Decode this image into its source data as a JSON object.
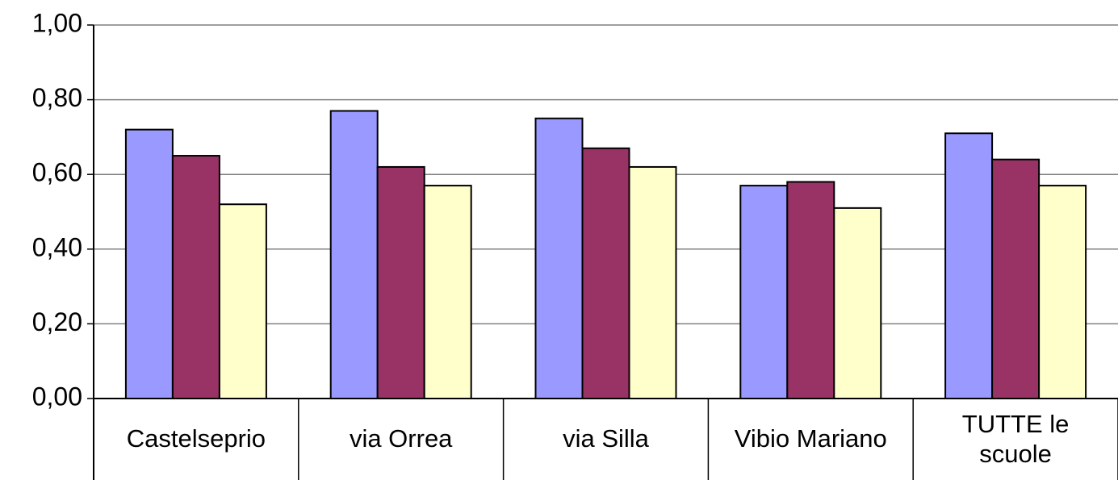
{
  "chart_data": {
    "type": "bar",
    "categories": [
      "Castelseprio",
      "via Orrea",
      "via Silla",
      "Vibio Mariano",
      "TUTTE le scuole"
    ],
    "series": [
      {
        "color": "#9999ff",
        "values": [
          0.72,
          0.77,
          0.75,
          0.57,
          0.71
        ]
      },
      {
        "color": "#993366",
        "values": [
          0.65,
          0.62,
          0.67,
          0.58,
          0.64
        ]
      },
      {
        "color": "#ffffcc",
        "values": [
          0.52,
          0.57,
          0.62,
          0.51,
          0.57
        ]
      }
    ],
    "ylim": [
      0,
      1
    ],
    "yticks": [
      {
        "value": 0,
        "label": "0,00"
      },
      {
        "value": 0.2,
        "label": "0,20"
      },
      {
        "value": 0.4,
        "label": "0,40"
      },
      {
        "value": 0.6,
        "label": "0,60"
      },
      {
        "value": 0.8,
        "label": "0,80"
      },
      {
        "value": 1,
        "label": "1,00"
      }
    ],
    "grid": true
  }
}
